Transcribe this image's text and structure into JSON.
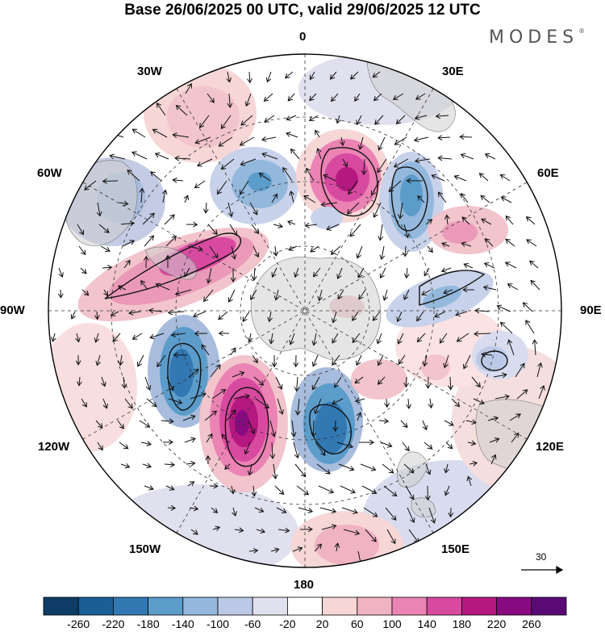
{
  "title": "Base 26/06/2025 00 UTC, valid 29/06/2025 12 UTC",
  "brand": "MODES",
  "brand_mark": "®",
  "longitude_labels": {
    "top": "0",
    "nne": "30E",
    "ene": "60E",
    "east": "90E",
    "ese": "120E",
    "sse": "150E",
    "bottom": "180",
    "ssw": "150W",
    "wsw": "120W",
    "west": "90W",
    "wnw": "60W",
    "nnw": "30W"
  },
  "colorbar": {
    "ticks": [
      "-260",
      "-220",
      "-180",
      "-140",
      "-100",
      "-60",
      "-20",
      "20",
      "60",
      "100",
      "140",
      "180",
      "220",
      "260"
    ],
    "colors": [
      "#0d3d66",
      "#1a5e96",
      "#3279b4",
      "#5c9ccb",
      "#93b8dc",
      "#bcc9e6",
      "#e0e0ef",
      "#ffffff",
      "#f7d6d6",
      "#f0b3c2",
      "#eb83b4",
      "#d84aa0",
      "#b5187f",
      "#880b82",
      "#5a0a74"
    ]
  },
  "reference_vector": {
    "label": "30"
  }
}
